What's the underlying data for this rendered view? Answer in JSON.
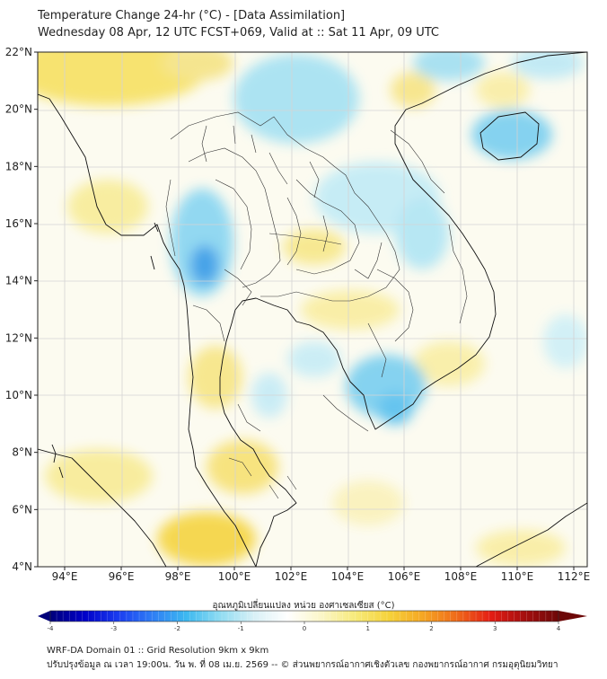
{
  "header": {
    "title_line1": "Temperature Change 24-hr (°C) - [Data Assimilation]",
    "title_line2": "Wednesday 08 Apr, 12 UTC FCST+069, Valid at :: Sat 11 Apr, 09 UTC"
  },
  "axes": {
    "lat_labels": [
      "22°N",
      "20°N",
      "18°N",
      "16°N",
      "14°N",
      "12°N",
      "10°N",
      "8°N",
      "6°N",
      "4°N"
    ],
    "lon_labels": [
      "94°E",
      "96°E",
      "98°E",
      "100°E",
      "102°E",
      "104°E",
      "106°E",
      "108°E",
      "110°E",
      "112°E"
    ]
  },
  "colorbar": {
    "title": "อุณหภูมิเปลี่ยนแปลง หน่วย องศาเซลเซียส (°C)",
    "ticks": [
      "-4",
      "-3",
      "-2",
      "-1",
      "0",
      "1",
      "2",
      "3",
      "4"
    ],
    "min": -4,
    "max": 4,
    "colors": [
      "#00007a",
      "#0000c8",
      "#1a3cf0",
      "#2f7df5",
      "#3cb8f0",
      "#8edcf2",
      "#d8f0f6",
      "#ffffff",
      "#fbf6c8",
      "#f7ea7a",
      "#f5d23a",
      "#f5a623",
      "#ef6a1a",
      "#e41d14",
      "#a50f0f",
      "#6d0808"
    ]
  },
  "footer": {
    "line1": "WRF-DA Domain 01 :: Grid Resolution 9km x 9km",
    "line2": "ปรับปรุงข้อมูล ณ เวลา 19:00น. วัน พ. ที่ 08 เม.ย. 2569 -- © ส่วนพยากรณ์อากาศเชิงตัวเลข กองพยากรณ์อากาศ กรมอุตุนิยมวิทยา"
  }
}
